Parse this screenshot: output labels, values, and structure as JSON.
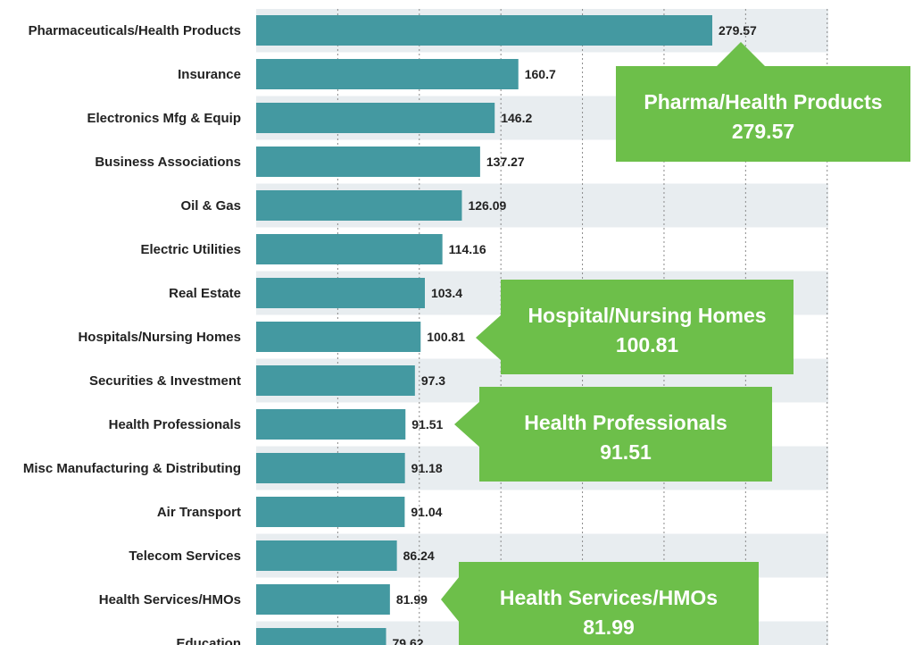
{
  "chart_data": {
    "type": "bar",
    "orientation": "horizontal",
    "categories": [
      "Pharmaceuticals/Health Products",
      "Insurance",
      "Electronics Mfg & Equip",
      "Business Associations",
      "Oil & Gas",
      "Electric Utilities",
      "Real Estate",
      "Hospitals/Nursing Homes",
      "Securities & Investment",
      "Health Professionals",
      "Misc Manufacturing & Distributing",
      "Air Transport",
      "Telecom Services",
      "Health Services/HMOs",
      "Education"
    ],
    "values": [
      279.57,
      160.7,
      146.2,
      137.27,
      126.09,
      114.16,
      103.4,
      100.81,
      97.3,
      91.51,
      91.18,
      91.04,
      86.24,
      81.99,
      79.62
    ],
    "value_labels": [
      "279.57",
      "160.7",
      "146.2",
      "137.27",
      "126.09",
      "114.16",
      "103.4",
      "100.81",
      "97.3",
      "91.51",
      "91.18",
      "91.04",
      "86.24",
      "81.99",
      "79.62"
    ],
    "xlim": [
      0,
      350
    ],
    "grid": true,
    "bar_color": "#4499a1",
    "band_color": "#e8edf0",
    "callout_color": "#6dbf4a",
    "callouts": [
      {
        "target_index": 0,
        "line1": "Pharma/Health Products",
        "line2": "279.57"
      },
      {
        "target_index": 7,
        "line1": "Hospital/Nursing Homes",
        "line2": "100.81"
      },
      {
        "target_index": 9,
        "line1": "Health Professionals",
        "line2": "91.51"
      },
      {
        "target_index": 13,
        "line1": "Health Services/HMOs",
        "line2": "81.99"
      }
    ]
  }
}
